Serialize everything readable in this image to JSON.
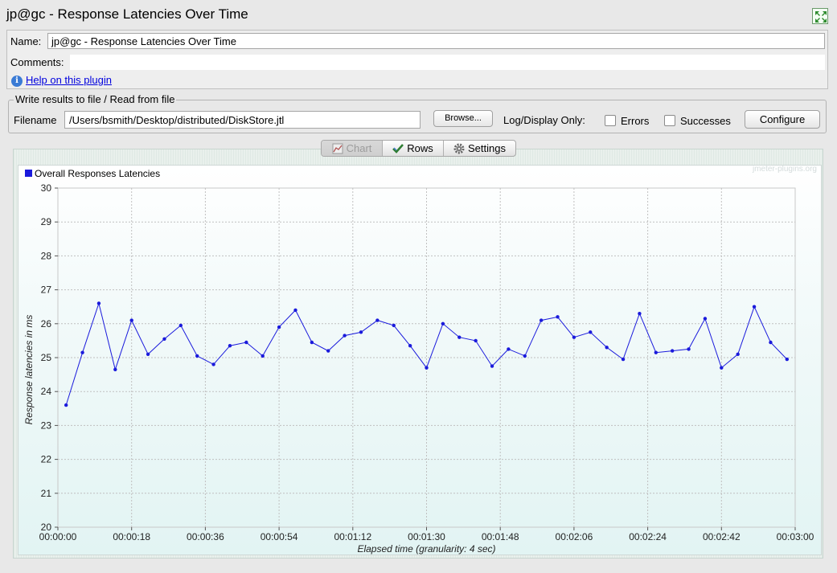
{
  "window": {
    "title": "jp@gc - Response Latencies Over Time"
  },
  "form": {
    "name_label": "Name:",
    "name_value": "jp@gc - Response Latencies Over Time",
    "comments_label": "Comments:",
    "help_link": "Help on this plugin"
  },
  "file": {
    "legend": "Write results to file / Read from file",
    "filename_label": "Filename",
    "filename_value": "/Users/bsmith/Desktop/distributed/DiskStore.jtl",
    "browse_label": "Browse...",
    "log_display_label": "Log/Display Only:",
    "errors_label": "Errors",
    "errors_checked": false,
    "successes_label": "Successes",
    "successes_checked": false,
    "configure_label": "Configure"
  },
  "tabs": [
    {
      "label": "Chart",
      "icon": "chart-icon",
      "selected": true
    },
    {
      "label": "Rows",
      "icon": "checkmark-icon",
      "selected": false
    },
    {
      "label": "Settings",
      "icon": "gear-icon",
      "selected": false
    }
  ],
  "chart_watermark": "jmeter-plugins.org",
  "colors": {
    "series": "#1a1adc",
    "link": "#0000dd"
  },
  "chart_data": {
    "type": "line",
    "title": "",
    "xlabel": "Elapsed time (granularity: 4 sec)",
    "ylabel": "Response latencies in ms",
    "ylim": [
      20,
      30
    ],
    "yticks": [
      "20",
      "21",
      "22",
      "23",
      "24",
      "25",
      "26",
      "27",
      "28",
      "29",
      "30"
    ],
    "xlim": [
      0,
      180
    ],
    "xticks": [
      "00:00:00",
      "00:00:18",
      "00:00:36",
      "00:00:54",
      "00:01:12",
      "00:01:30",
      "00:01:48",
      "00:02:06",
      "00:02:24",
      "00:02:42",
      "00:03:00"
    ],
    "grid": true,
    "legend_position": "top-left",
    "series": [
      {
        "name": "Overall Responses Latencies",
        "x": [
          2,
          6,
          10,
          14,
          18,
          22,
          26,
          30,
          34,
          38,
          42,
          46,
          50,
          54,
          58,
          62,
          66,
          70,
          74,
          78,
          82,
          86,
          90,
          94,
          98,
          102,
          106,
          110,
          114,
          118,
          122,
          126,
          130,
          134,
          138,
          142,
          146,
          150,
          154,
          158,
          162,
          166,
          170,
          174,
          178
        ],
        "values": [
          23.6,
          25.15,
          26.6,
          24.65,
          26.1,
          25.1,
          25.55,
          25.95,
          25.05,
          24.8,
          25.35,
          25.45,
          25.05,
          25.9,
          26.4,
          25.45,
          25.2,
          25.65,
          25.75,
          26.1,
          25.95,
          25.35,
          24.7,
          26.0,
          25.6,
          25.5,
          24.75,
          25.25,
          25.05,
          26.1,
          26.2,
          25.6,
          25.75,
          25.3,
          24.95,
          26.3,
          25.15,
          25.2,
          25.25,
          26.15,
          24.7,
          25.1,
          26.5,
          25.45,
          24.95
        ]
      }
    ]
  }
}
